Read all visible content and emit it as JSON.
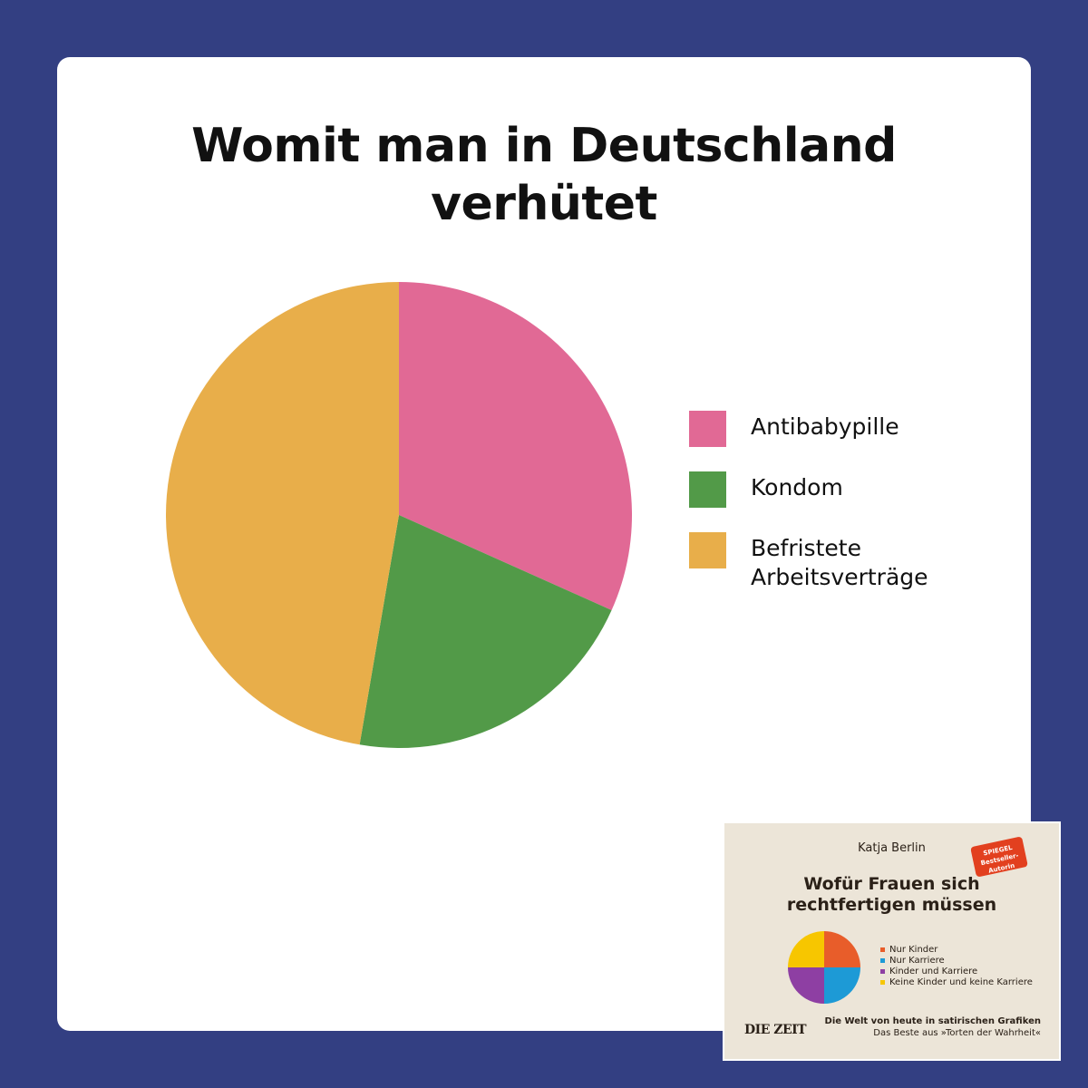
{
  "colors": {
    "background": "#333f82",
    "card": "#ffffff"
  },
  "chart_data": {
    "type": "pie",
    "title_lines": [
      "Womit man in Deutschland",
      "verhütet"
    ],
    "labels": [
      "Antibabypille",
      "Kondom",
      "Befristete\nArbeitsverträge"
    ],
    "values": [
      31.7,
      21.0,
      47.3
    ],
    "colors": [
      "#e16995",
      "#529a48",
      "#e8ae4a"
    ],
    "start_angle_deg": 0,
    "direction": "clockwise",
    "legend_position": "right",
    "data_labels": false
  },
  "book": {
    "author": "Katja Berlin",
    "badge": [
      "SPIEGEL",
      "Bestseller-",
      "Autorin"
    ],
    "title_lines": [
      "Wofür Frauen sich",
      "rechtfertigen müssen"
    ],
    "pie_colors": [
      "#e85d2a",
      "#1d9ad6",
      "#8e3fa3",
      "#f7c600"
    ],
    "legend": [
      {
        "label": "Nur Kinder",
        "color": "#e85d2a"
      },
      {
        "label": "Nur Karriere",
        "color": "#1d9ad6"
      },
      {
        "label": "Kinder und Karriere",
        "color": "#8e3fa3"
      },
      {
        "label": "Keine Kinder und keine Karriere",
        "color": "#f7c600"
      }
    ],
    "publisher": "DIE ZEIT",
    "subtitle_bold": "Die Welt von heute in satirischen Grafiken",
    "subtitle": "Das Beste aus »Torten der Wahrheit«"
  }
}
